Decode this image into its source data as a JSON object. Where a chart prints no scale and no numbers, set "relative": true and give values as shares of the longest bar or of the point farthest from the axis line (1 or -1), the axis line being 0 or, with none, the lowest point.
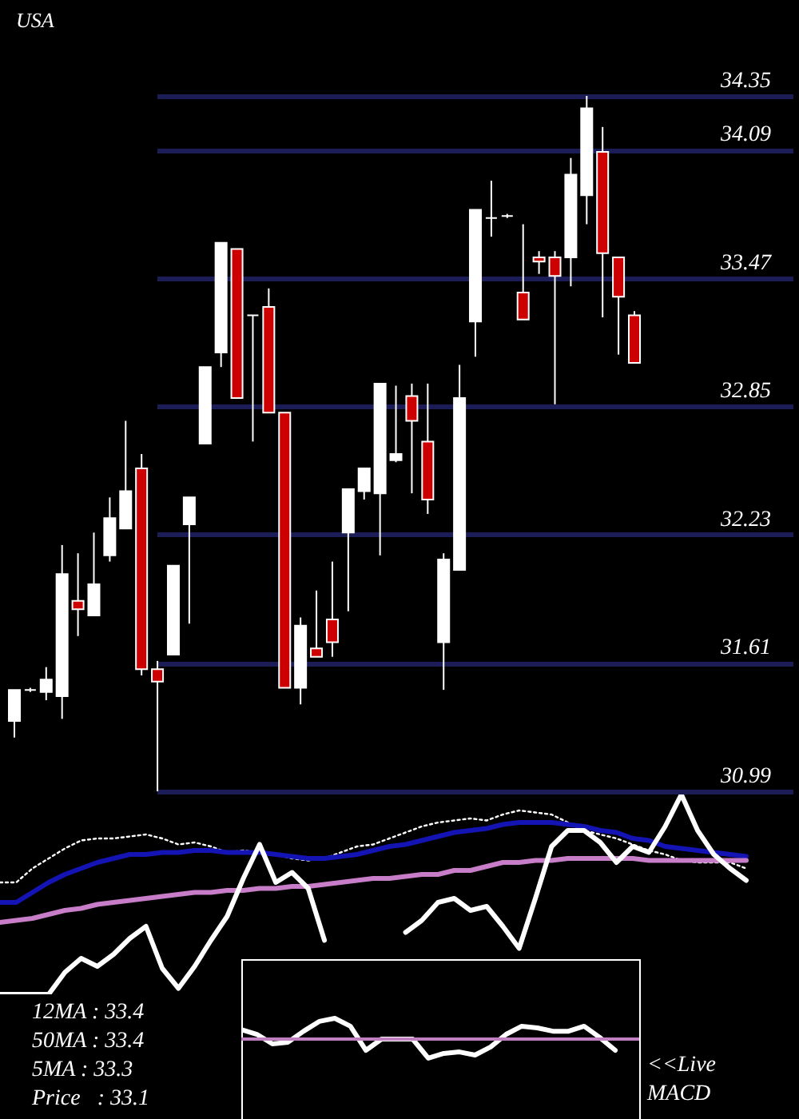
{
  "chart_data": [
    {
      "type": "candlestick",
      "title": "USA",
      "categories": [
        null,
        null,
        null,
        null,
        null,
        null,
        null,
        null,
        null,
        null,
        null,
        null,
        null,
        null,
        null,
        null,
        null,
        null,
        null,
        null,
        null,
        null,
        null,
        null,
        null,
        null,
        null,
        null,
        null,
        null,
        null,
        null,
        null,
        null,
        null,
        null,
        null,
        null,
        null,
        null
      ],
      "ohlc": [
        [
          31.33,
          31.48,
          31.25,
          31.48
        ],
        [
          31.48,
          31.49,
          31.47,
          31.48
        ],
        [
          31.47,
          31.59,
          31.43,
          31.53
        ],
        [
          31.45,
          32.18,
          31.34,
          32.04
        ],
        [
          31.91,
          32.14,
          31.74,
          31.87
        ],
        [
          31.84,
          32.24,
          31.84,
          31.99
        ],
        [
          32.13,
          32.41,
          32.1,
          32.31
        ],
        [
          32.26,
          32.78,
          32.26,
          32.44
        ],
        [
          32.55,
          32.62,
          31.55,
          31.58
        ],
        [
          31.58,
          31.62,
          30.99,
          31.52
        ],
        [
          31.65,
          32.08,
          31.65,
          32.08
        ],
        [
          32.28,
          32.41,
          31.8,
          32.41
        ],
        [
          32.67,
          33.04,
          32.67,
          33.04
        ],
        [
          33.11,
          33.64,
          33.04,
          33.64
        ],
        [
          33.61,
          33.61,
          32.89,
          32.89
        ],
        [
          33.29,
          33.29,
          32.68,
          33.29
        ],
        [
          33.33,
          33.42,
          32.82,
          32.82
        ],
        [
          32.82,
          32.82,
          31.49,
          31.49
        ],
        [
          31.49,
          31.83,
          31.41,
          31.79
        ],
        [
          31.68,
          31.96,
          31.64,
          31.64
        ],
        [
          31.82,
          32.1,
          31.64,
          31.71
        ],
        [
          32.24,
          32.45,
          31.86,
          32.45
        ],
        [
          32.44,
          32.55,
          32.4,
          32.55
        ],
        [
          32.43,
          32.96,
          32.13,
          32.96
        ],
        [
          32.59,
          32.95,
          32.58,
          32.62
        ],
        [
          32.9,
          32.96,
          32.43,
          32.78
        ],
        [
          32.68,
          32.96,
          32.33,
          32.4
        ],
        [
          31.71,
          32.14,
          31.48,
          32.11
        ],
        [
          32.06,
          33.05,
          32.06,
          32.89
        ],
        [
          33.26,
          33.8,
          33.09,
          33.8
        ],
        [
          33.76,
          33.94,
          33.67,
          33.76
        ],
        [
          33.77,
          33.78,
          33.76,
          33.77
        ],
        [
          33.4,
          33.73,
          33.27,
          33.27
        ],
        [
          33.57,
          33.6,
          33.49,
          33.55
        ],
        [
          33.57,
          33.6,
          32.86,
          33.48
        ],
        [
          33.57,
          34.05,
          33.43,
          33.97
        ],
        [
          33.87,
          34.35,
          33.73,
          34.29
        ],
        [
          34.08,
          34.2,
          33.28,
          33.59
        ],
        [
          33.57,
          33.57,
          33.1,
          33.38
        ],
        [
          33.29,
          33.31,
          33.06,
          33.06
        ]
      ],
      "colors": [
        "#ffffff",
        "#ffffff",
        "#ffffff",
        "#ffffff",
        "#cc0000",
        "#ffffff",
        "#ffffff",
        "#ffffff",
        "#cc0000",
        "#cc0000",
        "#ffffff",
        "#ffffff",
        "#ffffff",
        "#ffffff",
        "#cc0000",
        "#ffffff",
        "#cc0000",
        "#cc0000",
        "#ffffff",
        "#cc0000",
        "#cc0000",
        "#ffffff",
        "#ffffff",
        "#ffffff",
        "#ffffff",
        "#cc0000",
        "#cc0000",
        "#ffffff",
        "#ffffff",
        "#ffffff",
        "#ffffff",
        "#ffffff",
        "#cc0000",
        "#cc0000",
        "#cc0000",
        "#ffffff",
        "#ffffff",
        "#cc0000",
        "#cc0000",
        "#cc0000"
      ],
      "ylim": [
        30.99,
        34.35
      ],
      "yticks": [
        30.99,
        31.61,
        32.23,
        32.85,
        33.47,
        34.09,
        34.35
      ],
      "grid": "y",
      "tick_labels": "y"
    },
    {
      "type": "line",
      "relative": true,
      "tick_labels": false,
      "categories": [
        null,
        null,
        null,
        null,
        null,
        null,
        null,
        null,
        null,
        null,
        null,
        null,
        null,
        null,
        null,
        null,
        null,
        null,
        null,
        null,
        null,
        null,
        null,
        null,
        null,
        null,
        null,
        null,
        null,
        null,
        null,
        null,
        null,
        null,
        null,
        null,
        null,
        null,
        null,
        null,
        null,
        null,
        null,
        null,
        null,
        null,
        null
      ],
      "series": [
        {
          "color": "#ffffff",
          "line_style": "dotted",
          "values": [
            0.56,
            0.56,
            0.63,
            0.68,
            0.73,
            0.77,
            0.78,
            0.78,
            0.79,
            0.8,
            0.78,
            0.75,
            0.76,
            0.74,
            0.71,
            0.72,
            0.71,
            0.7,
            0.68,
            0.67,
            0.68,
            0.71,
            0.74,
            0.75,
            0.78,
            0.81,
            0.84,
            0.86,
            0.87,
            0.88,
            0.87,
            0.9,
            0.92,
            0.91,
            0.9,
            0.86,
            0.82,
            0.8,
            0.78,
            0.75,
            0.72,
            0.7,
            0.67,
            0.66,
            0.66,
            0.66,
            0.63
          ]
        },
        {
          "color": "#1414b4",
          "values": [
            0.46,
            0.46,
            0.51,
            0.56,
            0.6,
            0.63,
            0.66,
            0.68,
            0.7,
            0.7,
            0.71,
            0.71,
            0.72,
            0.72,
            0.71,
            0.71,
            0.71,
            0.7,
            0.69,
            0.68,
            0.68,
            0.69,
            0.7,
            0.72,
            0.74,
            0.75,
            0.77,
            0.79,
            0.81,
            0.82,
            0.83,
            0.85,
            0.86,
            0.86,
            0.86,
            0.85,
            0.84,
            0.82,
            0.81,
            0.78,
            0.77,
            0.74,
            0.73,
            0.72,
            0.71,
            0.7,
            0.69
          ]
        },
        {
          "color": "#c87dc8",
          "values": [
            0.36,
            0.37,
            0.38,
            0.4,
            0.42,
            0.43,
            0.45,
            0.46,
            0.47,
            0.48,
            0.49,
            0.5,
            0.51,
            0.51,
            0.52,
            0.52,
            0.53,
            0.53,
            0.54,
            0.54,
            0.55,
            0.56,
            0.57,
            0.58,
            0.58,
            0.59,
            0.6,
            0.6,
            0.62,
            0.62,
            0.64,
            0.66,
            0.66,
            0.67,
            0.67,
            0.68,
            0.68,
            0.68,
            0.68,
            0.68,
            0.67,
            0.67,
            0.67,
            0.67,
            0.67,
            0.67,
            0.67
          ]
        },
        {
          "color": "#ffffff",
          "values": [
            0,
            0,
            0,
            0,
            0.11,
            0.18,
            0.14,
            0.2,
            0.28,
            0.34,
            0.13,
            0.03,
            0.14,
            0.27,
            0.39,
            0.58,
            0.75,
            0.56,
            0.61,
            0.53,
            0.27,
            null,
            null,
            null,
            null,
            0.31,
            0.37,
            0.46,
            0.48,
            0.42,
            0.44,
            0.34,
            0.23,
            0.48,
            0.74,
            0.82,
            0.82,
            0.76,
            0.66,
            0.74,
            0.71,
            0.84,
            1,
            0.82,
            0.7,
            0.63,
            0.57
          ]
        }
      ],
      "annotations": [
        "12MA : 33.4",
        "50MA : 33.4",
        "5MA : 33.3",
        "Price   : 33.1"
      ]
    },
    {
      "type": "line",
      "relative": true,
      "tick_labels": false,
      "categories": [
        null,
        null,
        null,
        null,
        null,
        null,
        null,
        null,
        null,
        null,
        null,
        null,
        null,
        null,
        null,
        null,
        null,
        null,
        null,
        null,
        null,
        null,
        null,
        null,
        null
      ],
      "series": [
        {
          "color": "#ffffff",
          "values": [
            0.46,
            0.23,
            -0.23,
            -0.15,
            0.38,
            0.85,
            1,
            0.62,
            -0.54,
            0,
            0,
            0,
            -0.92,
            -0.69,
            -0.62,
            -0.77,
            -0.38,
            0.23,
            0.62,
            0.54,
            0.38,
            0.38,
            0.62,
            0.08,
            -0.54
          ]
        }
      ],
      "ref_lines": [
        {
          "axis": "y",
          "value": 0,
          "color": "#c080c0"
        }
      ],
      "annotations": [
        "<<Live MACD"
      ]
    }
  ]
}
